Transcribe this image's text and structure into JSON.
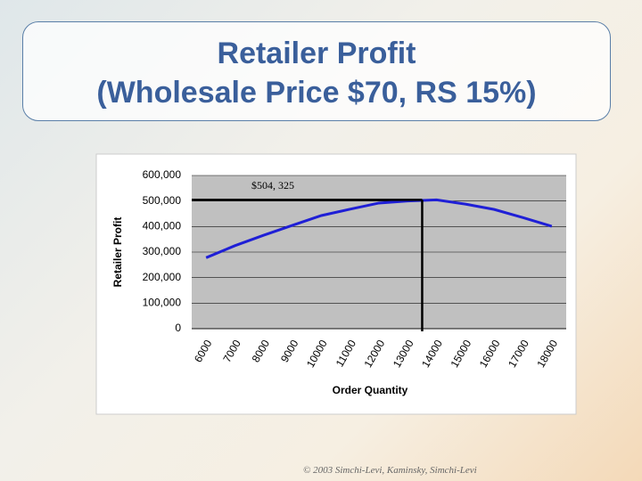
{
  "title": "Retailer Profit",
  "subtitle": "(Wholesale Price $70, RS 15%)",
  "footer": "© 2003 Simchi-Levi, Kaminsky, Simchi-Levi",
  "chart_data": {
    "type": "line",
    "x_label": "Order Quantity",
    "y_label": "Retailer Profit",
    "categories": [
      "6000",
      "7000",
      "8000",
      "9000",
      "10000",
      "11000",
      "12000",
      "13000",
      "14000",
      "15000",
      "16000",
      "17000",
      "18000"
    ],
    "series": [
      {
        "name": "Retailer Profit",
        "color": "#1f1fd6",
        "values": [
          278000,
          325000,
          366000,
          405000,
          443000,
          468000,
          492000,
          500000,
          504325,
          488000,
          467000,
          435000,
          401000
        ]
      }
    ],
    "ylim": [
      0,
      600000
    ],
    "yticks": [
      0,
      {
        "value": 100000,
        "label": "100,000"
      },
      {
        "value": 200000,
        "label": "200,000"
      },
      {
        "value": 300000,
        "label": "300,000"
      },
      {
        "value": 400000,
        "label": "400,000"
      },
      {
        "value": 500000,
        "label": "500,000"
      },
      {
        "value": 600000,
        "label": "600,000"
      }
    ],
    "grid": true,
    "annotation": {
      "value": 504325,
      "label": "$504, 325"
    }
  }
}
